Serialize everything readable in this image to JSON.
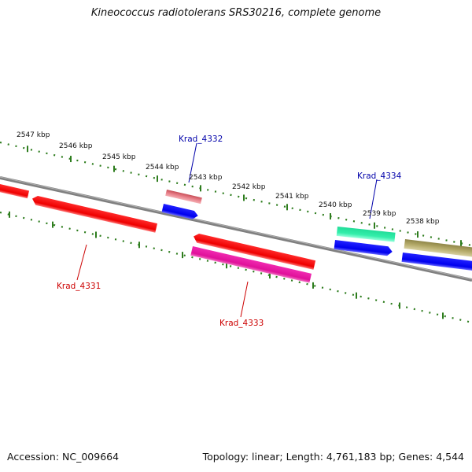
{
  "title": "Kineococcus radiotolerans SRS30216, complete genome",
  "accession_text": "Accession: NC_009664",
  "summary_text": "Topology: linear; Length: 4,761,183 bp; Genes: 4,544",
  "ticks": [
    {
      "label": "2547 kbp"
    },
    {
      "label": "2546 kbp"
    },
    {
      "label": "2545 kbp"
    },
    {
      "label": "2544 kbp"
    },
    {
      "label": "2543 kbp"
    },
    {
      "label": "2542 kbp"
    },
    {
      "label": "2541 kbp"
    },
    {
      "label": "2540 kbp"
    },
    {
      "label": "2539 kbp"
    },
    {
      "label": "2538 kbp"
    }
  ],
  "gene_labels": [
    {
      "name": "Krad_4331",
      "color": "#cc0000"
    },
    {
      "name": "Krad_4332",
      "color": "#0000aa"
    },
    {
      "name": "Krad_4333",
      "color": "#cc0000"
    },
    {
      "name": "Krad_4334",
      "color": "#0000aa"
    }
  ],
  "colors": {
    "backbone": "#808080",
    "tick": "#2e7d1e",
    "gene_red": "#ee0000",
    "gene_blue": "#0000ee",
    "gene_pink": "#e8808a",
    "gene_magenta": "#e0109a",
    "gene_teal": "#33eeaa",
    "gene_olive": "#b5ab6a"
  }
}
